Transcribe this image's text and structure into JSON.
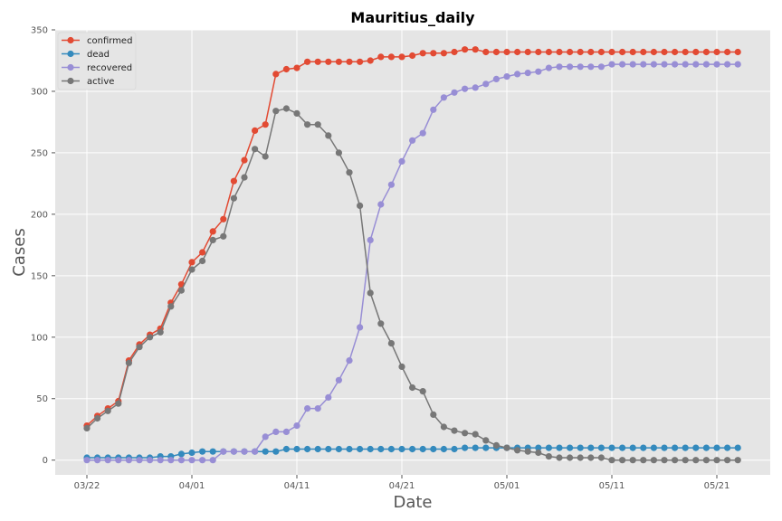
{
  "chart_data": {
    "type": "line",
    "title": "Mauritius_daily",
    "xlabel": "Date",
    "ylabel": "Cases",
    "x_start": "2020-03-22",
    "x_ticks": [
      {
        "date": "2020-03-22",
        "label": "03/22"
      },
      {
        "date": "2020-04-01",
        "label": "04/01"
      },
      {
        "date": "2020-04-11",
        "label": "04/11"
      },
      {
        "date": "2020-04-21",
        "label": "04/21"
      },
      {
        "date": "2020-05-01",
        "label": "05/01"
      },
      {
        "date": "2020-05-11",
        "label": "05/11"
      },
      {
        "date": "2020-05-21",
        "label": "05/21"
      }
    ],
    "ylim": [
      -12,
      350
    ],
    "y_ticks": [
      0,
      50,
      100,
      150,
      200,
      250,
      300,
      350
    ],
    "grid": true,
    "legend_position": "top-left",
    "series": [
      {
        "name": "confirmed",
        "color": "#E24A33",
        "values": [
          28,
          36,
          42,
          48,
          81,
          94,
          102,
          107,
          128,
          143,
          161,
          169,
          186,
          196,
          227,
          244,
          268,
          273,
          314,
          318,
          319,
          324,
          324,
          324,
          324,
          324,
          324,
          325,
          328,
          328,
          328,
          329,
          331,
          331,
          331,
          332,
          334,
          334,
          332,
          332,
          332,
          332,
          332,
          332,
          332,
          332,
          332,
          332,
          332,
          332,
          332,
          332,
          332,
          332,
          332,
          332,
          332,
          332,
          332,
          332,
          332,
          332,
          332
        ]
      },
      {
        "name": "dead",
        "color": "#348ABD",
        "values": [
          2,
          2,
          2,
          2,
          2,
          2,
          2,
          3,
          3,
          5,
          6,
          7,
          7,
          7,
          7,
          7,
          7,
          7,
          7,
          9,
          9,
          9,
          9,
          9,
          9,
          9,
          9,
          9,
          9,
          9,
          9,
          9,
          9,
          9,
          9,
          9,
          10,
          10,
          10,
          10,
          10,
          10,
          10,
          10,
          10,
          10,
          10,
          10,
          10,
          10,
          10,
          10,
          10,
          10,
          10,
          10,
          10,
          10,
          10,
          10,
          10,
          10,
          10
        ]
      },
      {
        "name": "recovered",
        "color": "#988ED5",
        "values": [
          0,
          0,
          0,
          0,
          0,
          0,
          0,
          0,
          0,
          0,
          0,
          0,
          0,
          7,
          7,
          7,
          7,
          19,
          23,
          23,
          28,
          42,
          42,
          51,
          65,
          81,
          108,
          179,
          208,
          224,
          243,
          260,
          266,
          285,
          295,
          299,
          302,
          303,
          306,
          310,
          312,
          314,
          315,
          316,
          319,
          320,
          320,
          320,
          320,
          320,
          322,
          322,
          322,
          322,
          322,
          322,
          322,
          322,
          322,
          322,
          322,
          322,
          322
        ]
      },
      {
        "name": "active",
        "color": "#777777",
        "values": [
          26,
          34,
          40,
          46,
          79,
          92,
          100,
          104,
          125,
          138,
          155,
          162,
          179,
          182,
          213,
          230,
          253,
          247,
          284,
          286,
          282,
          273,
          273,
          264,
          250,
          234,
          207,
          136,
          111,
          95,
          76,
          59,
          56,
          37,
          27,
          24,
          22,
          21,
          16,
          12,
          10,
          8,
          7,
          6,
          3,
          2,
          2,
          2,
          2,
          2,
          0,
          0,
          0,
          0,
          0,
          0,
          0,
          0,
          0,
          0,
          0,
          0,
          0
        ]
      }
    ]
  }
}
